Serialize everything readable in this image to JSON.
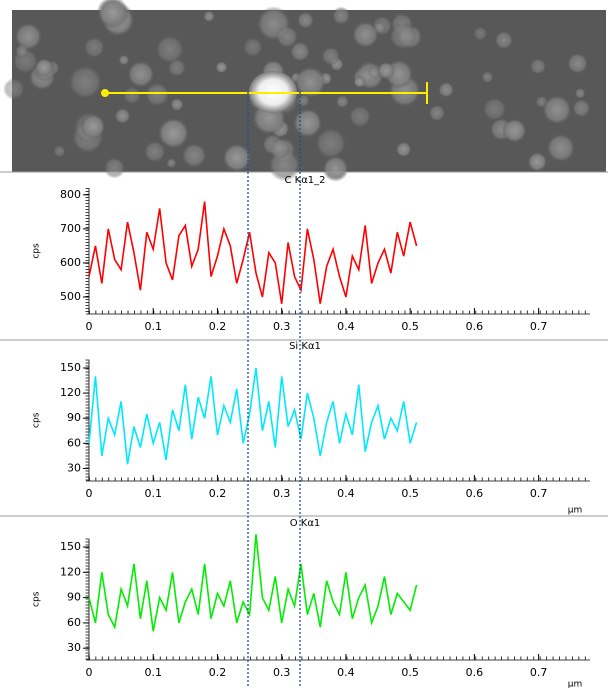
{
  "chart_data": [
    {
      "type": "line",
      "title": "C Kα1_2",
      "y_label": "cps",
      "color": "#ff0000",
      "x": [
        0,
        0.01,
        0.02,
        0.03,
        0.04,
        0.05,
        0.06,
        0.07,
        0.08,
        0.09,
        0.1,
        0.11,
        0.12,
        0.13,
        0.14,
        0.15,
        0.16,
        0.17,
        0.18,
        0.19,
        0.2,
        0.21,
        0.22,
        0.23,
        0.24,
        0.25,
        0.26,
        0.27,
        0.28,
        0.29,
        0.3,
        0.31,
        0.32,
        0.33,
        0.34,
        0.35,
        0.36,
        0.37,
        0.38,
        0.39,
        0.4,
        0.41,
        0.42,
        0.43,
        0.44,
        0.45,
        0.46,
        0.47,
        0.48,
        0.49,
        0.5,
        0.51
      ],
      "values": [
        560,
        650,
        540,
        700,
        610,
        580,
        720,
        630,
        520,
        690,
        640,
        760,
        600,
        550,
        680,
        710,
        590,
        640,
        780,
        560,
        620,
        700,
        650,
        540,
        610,
        690,
        570,
        500,
        630,
        600,
        480,
        660,
        560,
        520,
        700,
        610,
        480,
        590,
        640,
        560,
        500,
        620,
        580,
        710,
        540,
        600,
        640,
        570,
        690,
        620,
        720,
        650
      ],
      "xlim": [
        0,
        0.78
      ],
      "ylim": [
        450,
        820
      ],
      "xticks": [
        0,
        0.1,
        0.2,
        0.3,
        0.4,
        0.5,
        0.6,
        0.7
      ],
      "yticks": [
        500,
        600,
        700,
        800
      ]
    },
    {
      "type": "line",
      "title": "Si Kα1",
      "y_label": "cps",
      "x_label": "µm",
      "color": "#00e8ff",
      "x": [
        0,
        0.01,
        0.02,
        0.03,
        0.04,
        0.05,
        0.06,
        0.07,
        0.08,
        0.09,
        0.1,
        0.11,
        0.12,
        0.13,
        0.14,
        0.15,
        0.16,
        0.17,
        0.18,
        0.19,
        0.2,
        0.21,
        0.22,
        0.23,
        0.24,
        0.25,
        0.26,
        0.27,
        0.28,
        0.29,
        0.3,
        0.31,
        0.32,
        0.33,
        0.34,
        0.35,
        0.36,
        0.37,
        0.38,
        0.39,
        0.4,
        0.41,
        0.42,
        0.43,
        0.44,
        0.45,
        0.46,
        0.47,
        0.48,
        0.49,
        0.5,
        0.51
      ],
      "values": [
        60,
        140,
        45,
        90,
        70,
        110,
        35,
        80,
        55,
        95,
        60,
        85,
        40,
        100,
        75,
        130,
        65,
        115,
        90,
        140,
        70,
        105,
        85,
        125,
        60,
        95,
        150,
        75,
        110,
        55,
        140,
        80,
        100,
        65,
        120,
        90,
        45,
        85,
        110,
        60,
        95,
        70,
        130,
        50,
        85,
        105,
        65,
        90,
        75,
        110,
        60,
        85
      ],
      "xlim": [
        0,
        0.78
      ],
      "ylim": [
        15,
        160
      ],
      "xticks": [
        0,
        0.1,
        0.2,
        0.3,
        0.4,
        0.5,
        0.6,
        0.7
      ],
      "yticks": [
        30,
        60,
        90,
        120,
        150
      ]
    },
    {
      "type": "line",
      "title": "O Kα1",
      "y_label": "cps",
      "x_label": "µm",
      "color": "#00ee00",
      "x": [
        0,
        0.01,
        0.02,
        0.03,
        0.04,
        0.05,
        0.06,
        0.07,
        0.08,
        0.09,
        0.1,
        0.11,
        0.12,
        0.13,
        0.14,
        0.15,
        0.16,
        0.17,
        0.18,
        0.19,
        0.2,
        0.21,
        0.22,
        0.23,
        0.24,
        0.25,
        0.26,
        0.27,
        0.28,
        0.29,
        0.3,
        0.31,
        0.32,
        0.33,
        0.34,
        0.35,
        0.36,
        0.37,
        0.38,
        0.39,
        0.4,
        0.41,
        0.42,
        0.43,
        0.44,
        0.45,
        0.46,
        0.47,
        0.48,
        0.49,
        0.5,
        0.51
      ],
      "values": [
        90,
        60,
        120,
        70,
        55,
        100,
        80,
        130,
        65,
        110,
        50,
        90,
        75,
        120,
        60,
        85,
        100,
        70,
        130,
        65,
        95,
        80,
        110,
        60,
        85,
        70,
        165,
        90,
        75,
        115,
        60,
        100,
        80,
        130,
        70,
        95,
        55,
        110,
        85,
        70,
        120,
        65,
        90,
        105,
        60,
        80,
        115,
        70,
        95,
        85,
        75,
        105
      ],
      "xlim": [
        0,
        0.78
      ],
      "ylim": [
        16,
        160
      ],
      "xticks": [
        0,
        0.1,
        0.2,
        0.3,
        0.4,
        0.5,
        0.6,
        0.7
      ],
      "yticks": [
        30,
        60,
        90,
        120,
        150
      ]
    }
  ]
}
